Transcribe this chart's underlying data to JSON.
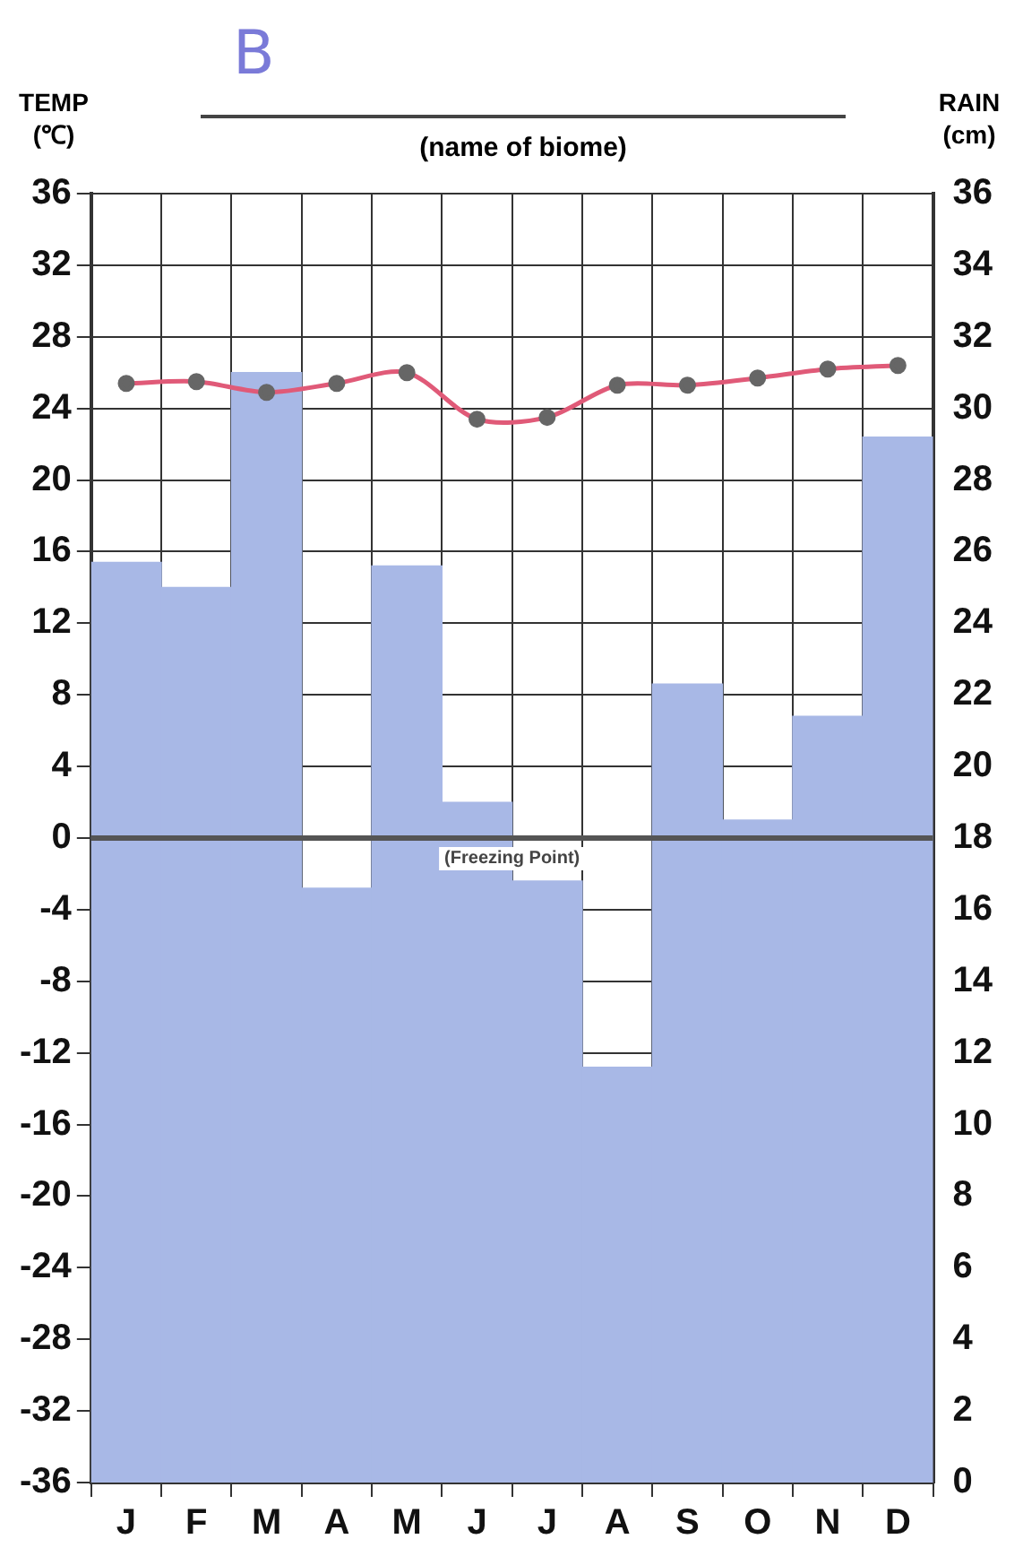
{
  "chart_data": {
    "type": "bar",
    "title": "B",
    "subtitle": "(name of biome)",
    "ylabel": "TEMP (℃)",
    "y2label": "RAIN (cm)",
    "categories": [
      "J",
      "F",
      "M",
      "A",
      "M",
      "J",
      "J",
      "A",
      "S",
      "O",
      "N",
      "D"
    ],
    "series": [
      {
        "axis": "y2",
        "color": "#a8b8e6",
        "values": [
          25.7,
          25,
          31,
          16.6,
          25.6,
          19,
          16.8,
          11.6,
          22.3,
          18.5,
          21.4,
          29.2
        ]
      },
      {
        "type": "line",
        "axis": "y",
        "color": "#e05a78",
        "marker": "circle",
        "values": [
          25.4,
          25.5,
          24.9,
          25.4,
          26,
          23.4,
          23.5,
          25.3,
          25.3,
          25.7,
          26.2,
          26.4
        ]
      }
    ],
    "ylim": [
      -36,
      36
    ],
    "yticks": [
      -36,
      -32,
      -28,
      -24,
      -20,
      -16,
      -12,
      -8,
      -4,
      0,
      4,
      8,
      12,
      16,
      20,
      24,
      28,
      32,
      36
    ],
    "y2lim": [
      0,
      36
    ],
    "y2ticks": [
      0,
      2,
      4,
      6,
      8,
      10,
      12,
      14,
      16,
      18,
      20,
      22,
      24,
      26,
      28,
      30,
      32,
      34,
      36
    ],
    "ref_lines": [
      {
        "axis": "y",
        "value": 0,
        "label": "(Freezing Point)",
        "color": "#555555"
      }
    ],
    "grid": true,
    "legend": false
  }
}
